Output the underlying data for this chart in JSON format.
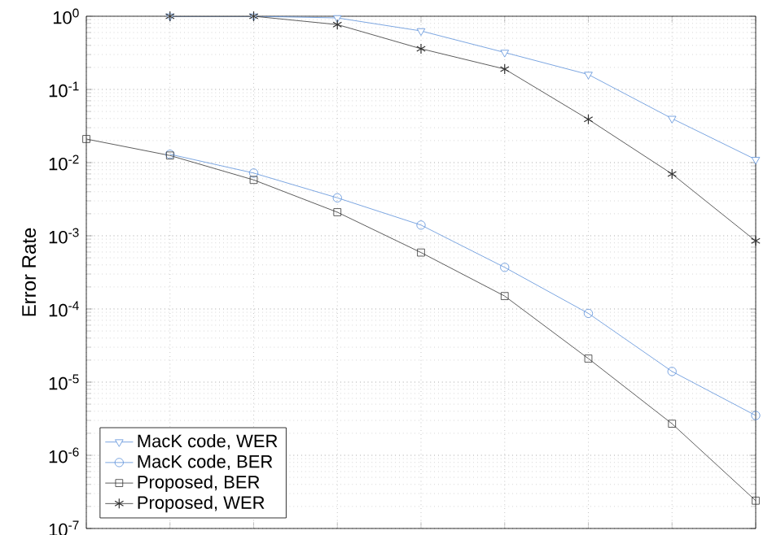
{
  "chart_data": {
    "type": "line",
    "ylabel": "Error Rate",
    "categories": [
      null,
      null,
      null,
      null,
      null,
      null,
      null,
      null,
      null
    ],
    "series": [
      {
        "name": "MacK code, WER",
        "color": "#5b8fd9",
        "marker": "triangle",
        "values": [
          null,
          1,
          1,
          0.95,
          0.63,
          0.32,
          0.16,
          0.04,
          0.011
        ]
      },
      {
        "name": "MacK code, BER",
        "color": "#5b8fd9",
        "marker": "circle",
        "values": [
          null,
          0.013,
          0.0072,
          0.0033,
          0.0014,
          0.00037,
          8.7e-05,
          1.4e-05,
          3.5e-06
        ]
      },
      {
        "name": "Proposed, BER",
        "color": "#333333",
        "marker": "square",
        "values": [
          0.021,
          0.0125,
          0.0058,
          0.0021,
          0.00059,
          0.00015,
          2.1e-05,
          2.7e-06,
          2.4e-07
        ]
      },
      {
        "name": "Proposed, WER",
        "color": "#333333",
        "marker": "cross",
        "values": [
          null,
          1,
          1,
          0.77,
          0.36,
          0.19,
          0.039,
          0.007,
          0.00085
        ]
      }
    ],
    "log": "y",
    "ylim": [
      1e-07,
      1
    ],
    "yticks": [
      {
        "value": 1e-07,
        "label": "10$^{-7}$"
      },
      {
        "value": 1e-06,
        "label": "10$^{-6}$"
      },
      {
        "value": 1e-05,
        "label": "10$^{-5}$"
      },
      {
        "value": 0.0001,
        "label": "10$^{-4}$"
      },
      {
        "value": 0.001,
        "label": "10$^{-3}$"
      },
      {
        "value": 0.01,
        "label": "10$^{-2}$"
      },
      {
        "value": 0.1,
        "label": "10$^{-1}$"
      },
      {
        "value": 1,
        "label": "10$^{0}$"
      }
    ],
    "tick_labels": "y",
    "grid": true,
    "legend": "bottom left",
    "line_style": "solid"
  }
}
